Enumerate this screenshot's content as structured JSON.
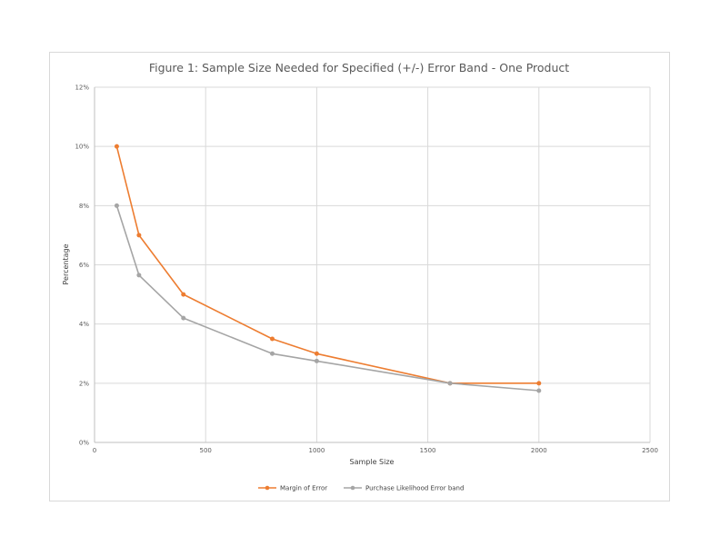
{
  "chart_data": {
    "type": "line",
    "title": "Figure 1: Sample Size Needed for Specified (+/-) Error Band - One Product",
    "xlabel": "Sample  Size",
    "ylabel": "Percentage",
    "xlim": [
      0,
      2500
    ],
    "ylim": [
      0,
      12
    ],
    "x_ticks": [
      "0",
      "500",
      "1000",
      "1500",
      "2000",
      "2500"
    ],
    "y_ticks": [
      "0%",
      "2%",
      "4%",
      "6%",
      "8%",
      "10%",
      "12%"
    ],
    "grid": true,
    "legend_position": "bottom",
    "series": [
      {
        "name": "Margin of Error",
        "color": "#ed7d31",
        "x": [
          100,
          200,
          400,
          800,
          1000,
          1600,
          2000
        ],
        "y": [
          10.0,
          7.0,
          5.0,
          3.5,
          3.0,
          2.0,
          2.0
        ]
      },
      {
        "name": "Purchase Likelihood Error band",
        "color": "#a5a5a5",
        "x": [
          100,
          200,
          400,
          800,
          1000,
          1600,
          2000
        ],
        "y": [
          8.0,
          5.65,
          4.2,
          3.0,
          2.75,
          2.0,
          1.75
        ]
      }
    ]
  }
}
